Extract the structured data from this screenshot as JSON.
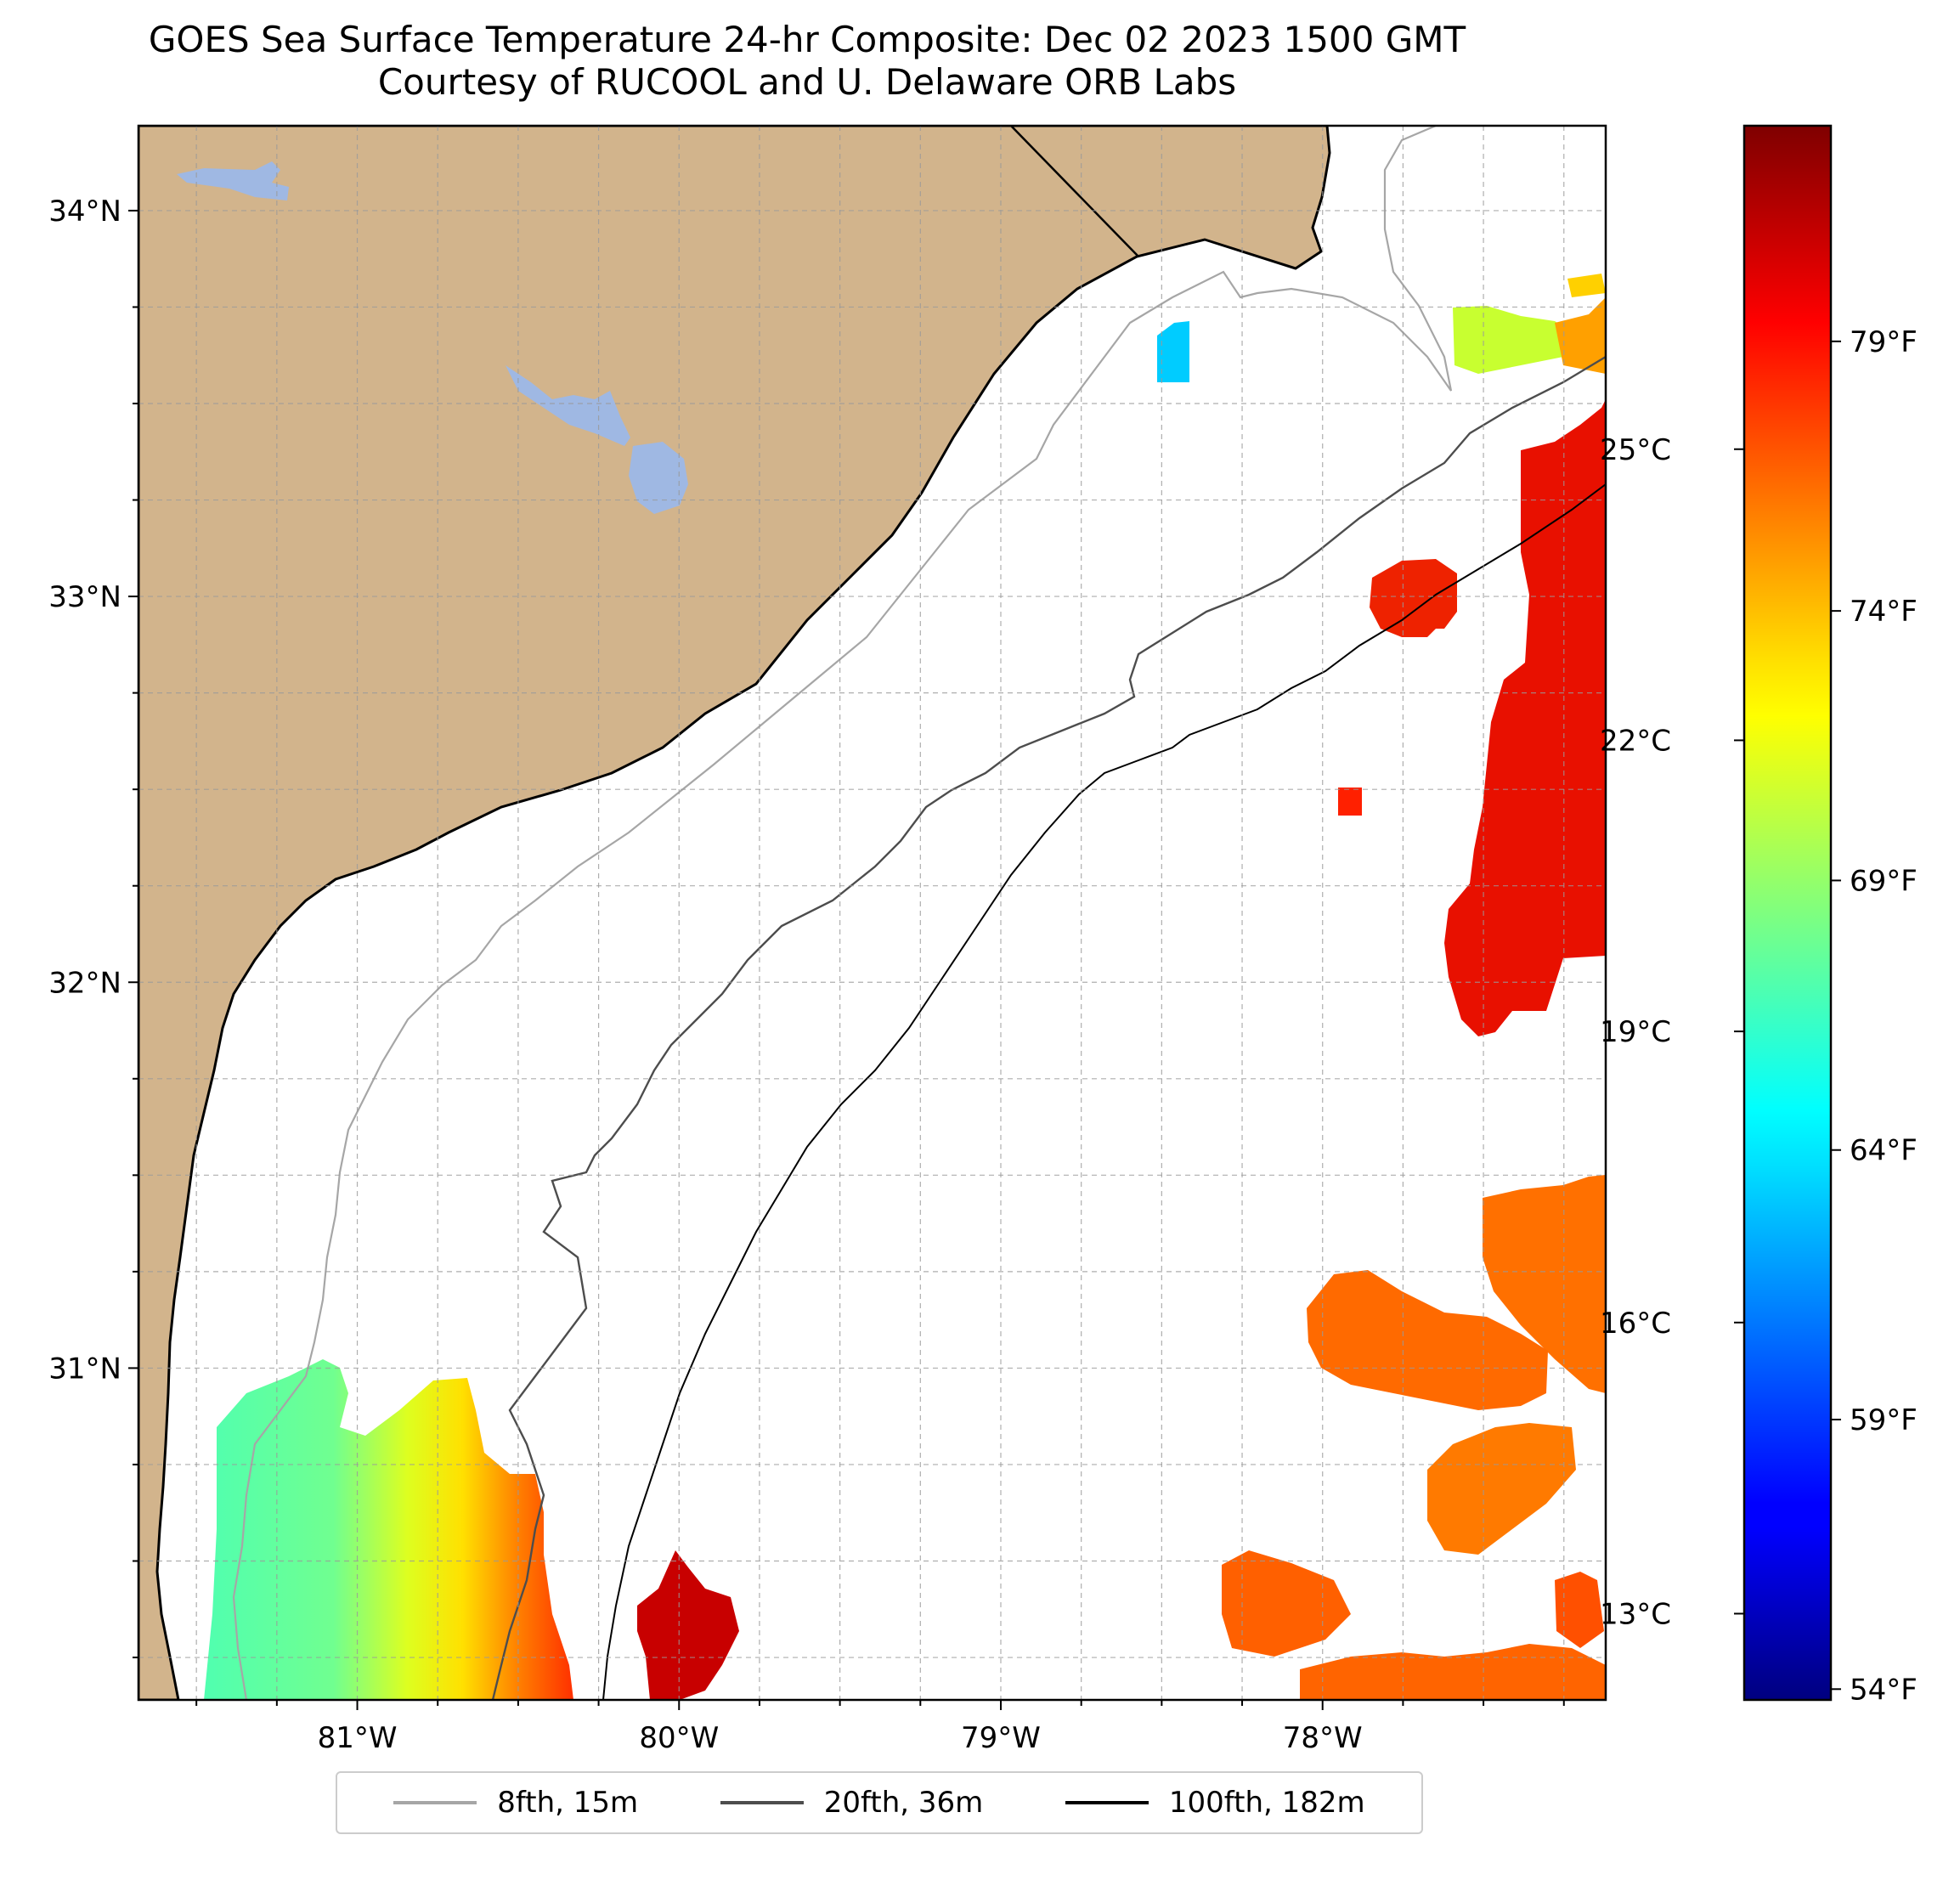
{
  "title": {
    "line1": "GOES Sea Surface Temperature 24-hr Composite: Dec 02 2023 1500 GMT",
    "line2": "Courtesy of RUCOOL and U. Delaware ORB Labs"
  },
  "map": {
    "lon_range": [
      -81.68,
      -77.12
    ],
    "lat_range": [
      30.14,
      34.22
    ],
    "lat_ticks": [
      {
        "value": 34,
        "label": "34°N"
      },
      {
        "value": 33,
        "label": "33°N"
      },
      {
        "value": 32,
        "label": "32°N"
      },
      {
        "value": 31,
        "label": "31°N"
      }
    ],
    "lon_ticks": [
      {
        "value": -81,
        "label": "81°W"
      },
      {
        "value": -80,
        "label": "80°W"
      },
      {
        "value": -79,
        "label": "79°W"
      },
      {
        "value": -78,
        "label": "78°W"
      }
    ],
    "gridlines": "dashed, every 0.25°",
    "colors": {
      "land": "#d2b48c",
      "water_body": "#9fb8e3",
      "ocean_no_data": "#ffffff"
    }
  },
  "colorbar": {
    "colormap": "jet",
    "range_f": [
      53.8,
      83.0
    ],
    "fahrenheit_ticks": [
      {
        "value": 79,
        "label": "79°F"
      },
      {
        "value": 74,
        "label": "74°F"
      },
      {
        "value": 69,
        "label": "69°F"
      },
      {
        "value": 64,
        "label": "64°F"
      },
      {
        "value": 59,
        "label": "59°F"
      },
      {
        "value": 54,
        "label": "54°F"
      }
    ],
    "celsius_ticks": [
      {
        "value": 25,
        "label": "25°C"
      },
      {
        "value": 22,
        "label": "22°C"
      },
      {
        "value": 19,
        "label": "19°C"
      },
      {
        "value": 16,
        "label": "16°C"
      },
      {
        "value": 13,
        "label": "13°C"
      }
    ]
  },
  "sst_patches": [
    {
      "temp_f": 65.0,
      "region": "near-shore north"
    },
    {
      "temp_f": 71.5,
      "region": "north-east"
    },
    {
      "temp_f": 79.5,
      "region": "gulf stream east"
    },
    {
      "temp_f": 78.0,
      "region": "south-east"
    },
    {
      "temp_f": 81.0,
      "region": "south offshore"
    },
    {
      "temp_f": 68.0,
      "region": "south near-shore"
    }
  ],
  "legend": [
    {
      "label": "8fth, 15m",
      "color": "#a6a6a6"
    },
    {
      "label": "20fth, 36m",
      "color": "#4d4d4d"
    },
    {
      "label": "100fth, 182m",
      "color": "#000000"
    }
  ]
}
